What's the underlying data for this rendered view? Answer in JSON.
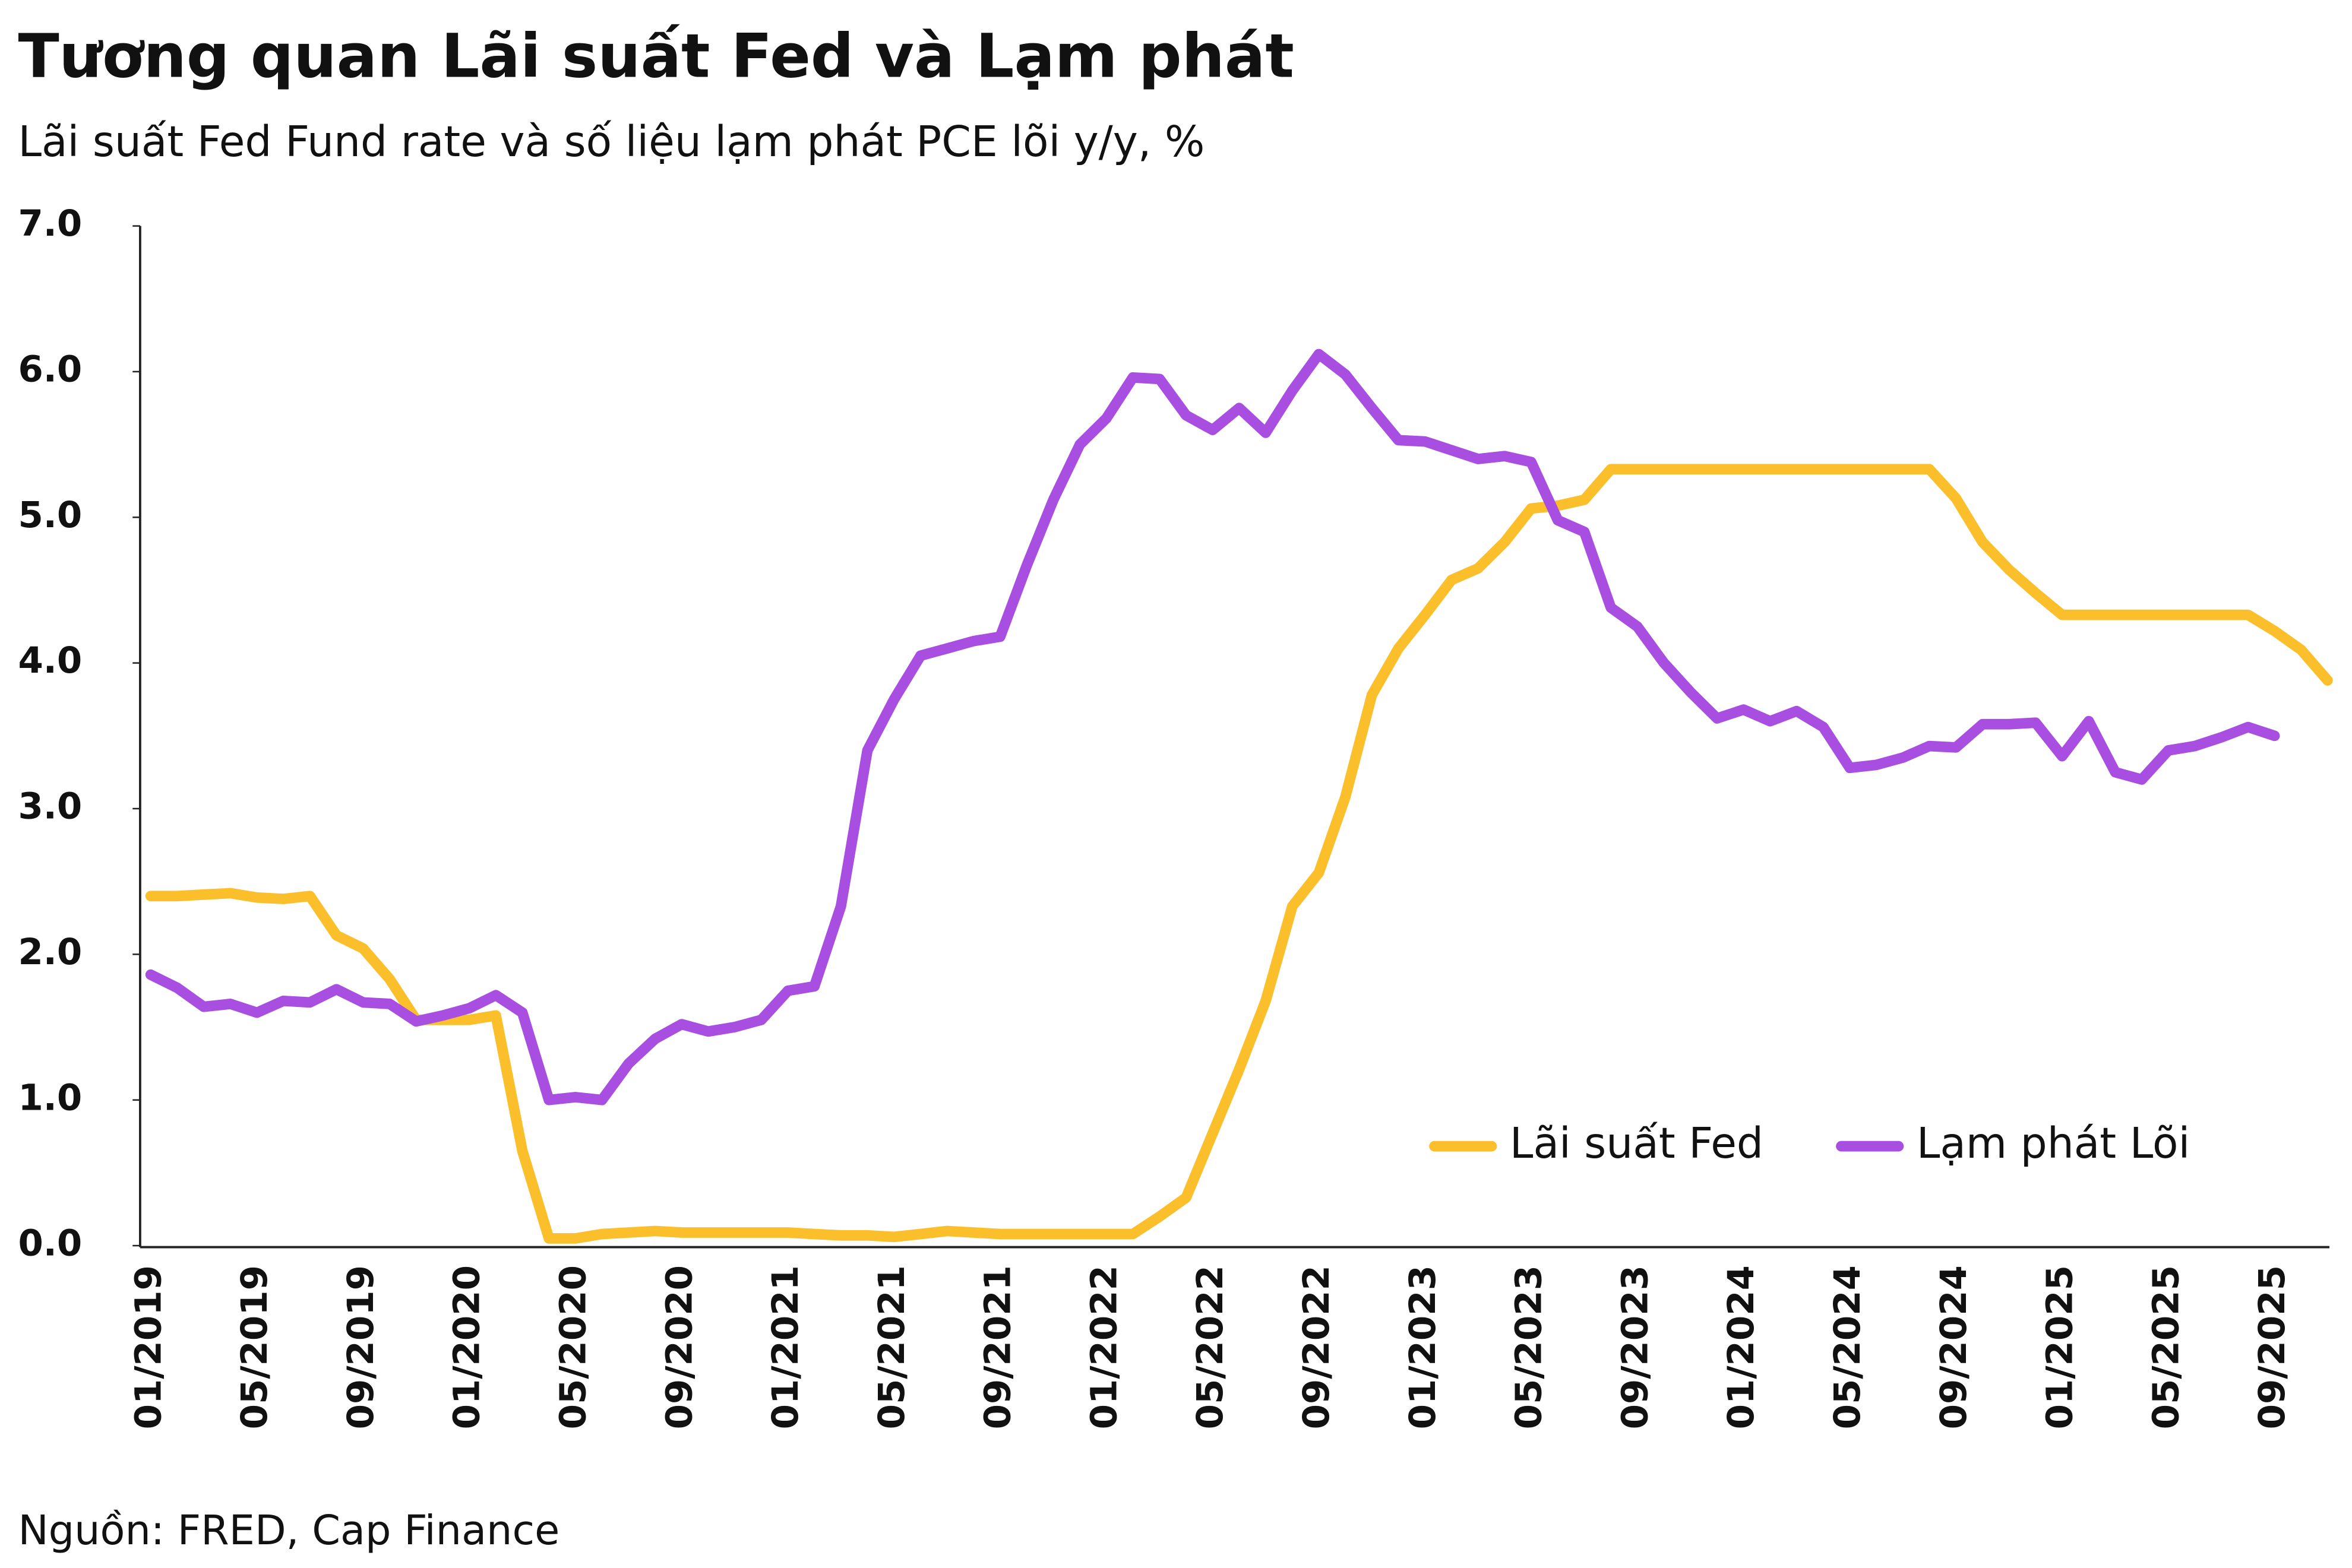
{
  "chart_data": {
    "type": "line",
    "title": "Tương quan Lãi suất Fed và Lạm phát",
    "subtitle": "Lãi suất Fed Fund rate và số liệu lạm phát PCE lõi y/y, %",
    "source": "Nguồn: FRED, Cap Finance",
    "categories": [
      "01/2019",
      null,
      null,
      null,
      "05/2019",
      null,
      null,
      null,
      "09/2019",
      null,
      null,
      null,
      "01/2020",
      null,
      null,
      null,
      "05/2020",
      null,
      null,
      null,
      "09/2020",
      null,
      null,
      null,
      "01/2021",
      null,
      null,
      null,
      "05/2021",
      null,
      null,
      null,
      "09/2021",
      null,
      null,
      null,
      "01/2022",
      null,
      null,
      null,
      "05/2022",
      null,
      null,
      null,
      "09/2022",
      null,
      null,
      null,
      "01/2023",
      null,
      null,
      null,
      "05/2023",
      null,
      null,
      null,
      "09/2023",
      null,
      null,
      null,
      "01/2024",
      null,
      null,
      null,
      "05/2024",
      null,
      null,
      null,
      "09/2024",
      null,
      null,
      null,
      "01/2025",
      null,
      null,
      null,
      "05/2025",
      null,
      null,
      null,
      "09/2025",
      null,
      null
    ],
    "series": [
      {
        "name": "Lãi suất Fed",
        "color": "#fbbf2c",
        "values": [
          2.4,
          2.4,
          2.41,
          2.42,
          2.39,
          2.38,
          2.4,
          2.13,
          2.04,
          1.83,
          1.55,
          1.55,
          1.55,
          1.58,
          0.65,
          0.05,
          0.05,
          0.08,
          0.09,
          0.1,
          0.09,
          0.09,
          0.09,
          0.09,
          0.09,
          0.08,
          0.07,
          0.07,
          0.06,
          0.08,
          0.1,
          0.09,
          0.08,
          0.08,
          0.08,
          0.08,
          0.08,
          0.08,
          0.2,
          0.33,
          0.77,
          1.21,
          1.68,
          2.33,
          2.56,
          3.08,
          3.78,
          4.1,
          4.33,
          4.57,
          4.65,
          4.83,
          5.06,
          5.08,
          5.12,
          5.33,
          5.33,
          5.33,
          5.33,
          5.33,
          5.33,
          5.33,
          5.33,
          5.33,
          5.33,
          5.33,
          5.33,
          5.33,
          5.13,
          4.83,
          4.64,
          4.48,
          4.33,
          4.33,
          4.33,
          4.33,
          4.33,
          4.33,
          4.33,
          4.33,
          4.22,
          4.09,
          3.88
        ]
      },
      {
        "name": "Lạm phát Lõi",
        "color": "#a84ee0",
        "values": [
          1.86,
          1.77,
          1.64,
          1.66,
          1.6,
          1.68,
          1.67,
          1.76,
          1.67,
          1.66,
          1.54,
          1.58,
          1.63,
          1.72,
          1.6,
          1.0,
          1.02,
          1.0,
          1.25,
          1.42,
          1.52,
          1.47,
          1.5,
          1.55,
          1.75,
          1.78,
          2.33,
          3.4,
          3.75,
          4.05,
          4.1,
          4.15,
          4.18,
          4.67,
          5.12,
          5.5,
          5.68,
          5.96,
          5.95,
          5.7,
          5.6,
          5.75,
          5.58,
          5.87,
          6.12,
          5.98,
          5.75,
          5.53,
          5.52,
          5.46,
          5.4,
          5.42,
          5.38,
          4.98,
          4.9,
          4.38,
          4.25,
          4.0,
          3.8,
          3.62,
          3.68,
          3.6,
          3.67,
          3.56,
          3.28,
          3.3,
          3.35,
          3.43,
          3.42,
          3.58,
          3.58,
          3.59,
          3.36,
          3.6,
          3.25,
          3.2,
          3.4,
          3.43,
          3.49,
          3.56,
          3.5,
          null,
          null
        ]
      }
    ],
    "ylim": [
      0,
      7
    ],
    "yticks": [
      {
        "value": 0,
        "label": "0.0"
      },
      {
        "value": 1,
        "label": "1.0"
      },
      {
        "value": 2,
        "label": "2.0"
      },
      {
        "value": 3,
        "label": "3.0"
      },
      {
        "value": 4,
        "label": "4.0"
      },
      {
        "value": 5,
        "label": "5.0"
      },
      {
        "value": 6,
        "label": "6.0"
      },
      {
        "value": 7,
        "label": "7.0"
      }
    ],
    "legend": "lower right",
    "grid": false
  }
}
